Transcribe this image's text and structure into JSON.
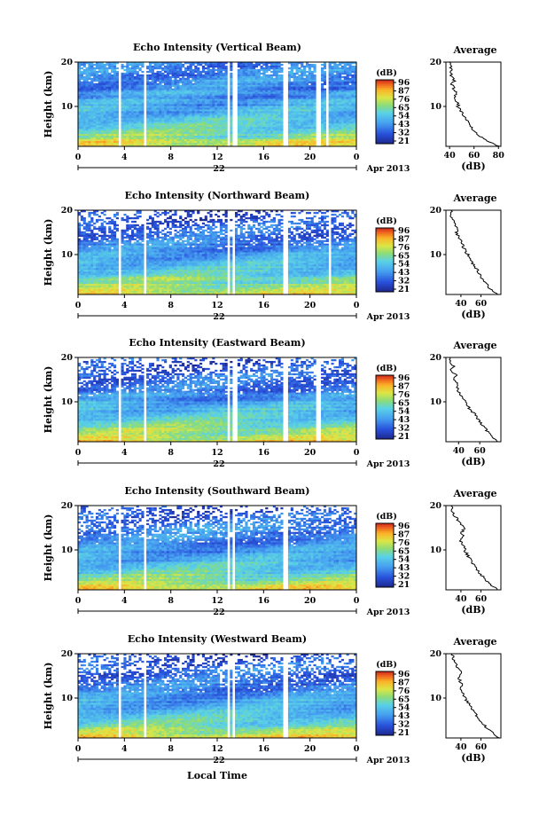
{
  "figure": {
    "date_label": "Apr 2013",
    "xlabel": "Local Time",
    "day_label": "22",
    "colorbar_unit": "(dB)",
    "colorbar_ticks": [
      "96",
      "87",
      "76",
      "65",
      "54",
      "43",
      "32",
      "21"
    ],
    "ylabel": "Height (km)",
    "average_title": "Average",
    "average_xlabel": "(dB)"
  },
  "chart_data": [
    {
      "type": "heatmap",
      "title": "Echo Intensity (Vertical Beam)",
      "ylabel": "Height (km)",
      "x_ticks": [
        "0",
        "4",
        "8",
        "12",
        "16",
        "20",
        "0"
      ],
      "xlim": [
        0,
        24
      ],
      "y_ticks": [
        "20",
        "10"
      ],
      "ylim": [
        1,
        20
      ],
      "colorbar": {
        "unit": "(dB)",
        "range": [
          21,
          96
        ],
        "ticks": [
          "96",
          "87",
          "76",
          "65",
          "54",
          "43",
          "32",
          "21"
        ]
      },
      "gap_hours": [
        [
          3.5,
          3.8
        ],
        [
          5.6,
          5.9
        ],
        [
          12.9,
          13.1
        ],
        [
          13.4,
          13.7
        ],
        [
          17.7,
          18.0
        ],
        [
          20.6,
          20.9
        ],
        [
          21.4,
          21.6
        ]
      ],
      "profile": {
        "title": "Average",
        "xlabel": "(dB)",
        "x_ticks": [
          "40",
          "60",
          "80"
        ],
        "xlim": [
          37,
          82
        ],
        "heights": [
          1,
          2,
          3,
          4,
          5,
          6,
          7,
          8,
          9,
          10,
          11,
          12,
          13,
          14,
          15,
          16,
          17,
          18,
          19,
          20
        ],
        "values": [
          80,
          72,
          66,
          62,
          58,
          55,
          54,
          52,
          49,
          47,
          46,
          44,
          45,
          43,
          42,
          44,
          41,
          42,
          41,
          40
        ]
      }
    },
    {
      "type": "heatmap",
      "title": "Echo Intensity (Northward Beam)",
      "ylabel": "Height (km)",
      "x_ticks": [
        "0",
        "4",
        "8",
        "12",
        "16",
        "20",
        "0"
      ],
      "xlim": [
        0,
        24
      ],
      "y_ticks": [
        "20",
        "10"
      ],
      "ylim": [
        1,
        20
      ],
      "colorbar": {
        "unit": "(dB)",
        "range": [
          21,
          96
        ],
        "ticks": [
          "96",
          "87",
          "76",
          "65",
          "54",
          "43",
          "32",
          "21"
        ]
      },
      "gap_hours": [
        [
          3.5,
          3.8
        ],
        [
          5.6,
          5.9
        ],
        [
          12.9,
          13.1
        ],
        [
          13.4,
          13.6
        ],
        [
          17.7,
          18.0
        ],
        [
          21.5,
          21.8
        ]
      ],
      "profile": {
        "title": "Average",
        "xlabel": "(dB)",
        "x_ticks": [
          "40",
          "60"
        ],
        "xlim": [
          25,
          80
        ],
        "heights": [
          1,
          2,
          3,
          4,
          5,
          6,
          7,
          8,
          9,
          10,
          11,
          12,
          13,
          14,
          15,
          16,
          17,
          18,
          19,
          20
        ],
        "values": [
          78,
          70,
          67,
          63,
          60,
          58,
          55,
          52,
          49,
          47,
          44,
          42,
          40,
          38,
          35,
          37,
          33,
          31,
          30,
          30
        ]
      }
    },
    {
      "type": "heatmap",
      "title": "Echo Intensity (Eastward Beam)",
      "ylabel": "Height (km)",
      "x_ticks": [
        "0",
        "4",
        "8",
        "12",
        "16",
        "20",
        "0"
      ],
      "xlim": [
        0,
        24
      ],
      "y_ticks": [
        "20",
        "10"
      ],
      "ylim": [
        1,
        20
      ],
      "colorbar": {
        "unit": "(dB)",
        "range": [
          21,
          96
        ],
        "ticks": [
          "96",
          "87",
          "76",
          "65",
          "54",
          "43",
          "32",
          "21"
        ]
      },
      "gap_hours": [
        [
          3.5,
          3.8
        ],
        [
          5.6,
          5.9
        ],
        [
          12.9,
          13.1
        ],
        [
          13.4,
          13.7
        ],
        [
          17.7,
          18.0
        ],
        [
          20.6,
          20.9
        ],
        [
          21.5,
          21.7
        ]
      ],
      "profile": {
        "title": "Average",
        "xlabel": "(dB)",
        "x_ticks": [
          "40",
          "60"
        ],
        "xlim": [
          28,
          80
        ],
        "heights": [
          1,
          2,
          3,
          4,
          5,
          6,
          7,
          8,
          9,
          10,
          11,
          12,
          13,
          14,
          15,
          16,
          17,
          18,
          19,
          20
        ],
        "values": [
          78,
          72,
          68,
          65,
          62,
          59,
          56,
          52,
          49,
          46,
          43,
          41,
          39,
          40,
          36,
          38,
          33,
          35,
          31,
          32
        ]
      }
    },
    {
      "type": "heatmap",
      "title": "Echo Intensity (Southward Beam)",
      "ylabel": "Height (km)",
      "x_ticks": [
        "0",
        "4",
        "8",
        "12",
        "16",
        "20",
        "0"
      ],
      "xlim": [
        0,
        24
      ],
      "y_ticks": [
        "20",
        "10"
      ],
      "ylim": [
        1,
        20
      ],
      "colorbar": {
        "unit": "(dB)",
        "range": [
          21,
          96
        ],
        "ticks": [
          "96",
          "87",
          "76",
          "65",
          "54",
          "43",
          "32",
          "21"
        ]
      },
      "gap_hours": [
        [
          3.5,
          3.8
        ],
        [
          5.6,
          5.9
        ],
        [
          12.9,
          13.1
        ],
        [
          13.4,
          13.6
        ],
        [
          17.7,
          18.0
        ],
        [
          21.5,
          21.7
        ]
      ],
      "profile": {
        "title": "Average",
        "xlabel": "(dB)",
        "x_ticks": [
          "40",
          "60"
        ],
        "xlim": [
          25,
          80
        ],
        "heights": [
          1,
          2,
          3,
          4,
          5,
          6,
          7,
          8,
          9,
          10,
          11,
          12,
          13,
          14,
          15,
          16,
          17,
          18,
          19,
          20
        ],
        "values": [
          78,
          71,
          66,
          62,
          58,
          55,
          52,
          49,
          46,
          44,
          42,
          40,
          42,
          41,
          43,
          40,
          36,
          33,
          31,
          30
        ]
      }
    },
    {
      "type": "heatmap",
      "title": "Echo Intensity (Westward Beam)",
      "ylabel": "Height (km)",
      "x_ticks": [
        "0",
        "4",
        "8",
        "12",
        "16",
        "20",
        "0"
      ],
      "xlim": [
        0,
        24
      ],
      "y_ticks": [
        "20",
        "10"
      ],
      "ylim": [
        1,
        20
      ],
      "colorbar": {
        "unit": "(dB)",
        "range": [
          21,
          96
        ],
        "ticks": [
          "96",
          "87",
          "76",
          "65",
          "54",
          "43",
          "32",
          "21"
        ]
      },
      "gap_hours": [
        [
          3.5,
          3.8
        ],
        [
          5.6,
          5.9
        ],
        [
          12.9,
          13.1
        ],
        [
          13.4,
          13.6
        ],
        [
          17.7,
          18.0
        ],
        [
          21.5,
          21.7
        ]
      ],
      "profile": {
        "title": "Average",
        "xlabel": "(dB)",
        "x_ticks": [
          "40",
          "60"
        ],
        "xlim": [
          25,
          80
        ],
        "heights": [
          1,
          2,
          3,
          4,
          5,
          6,
          7,
          8,
          9,
          10,
          11,
          12,
          13,
          14,
          15,
          16,
          17,
          18,
          19,
          20
        ],
        "values": [
          78,
          72,
          67,
          63,
          59,
          56,
          53,
          50,
          47,
          44,
          42,
          40,
          41,
          39,
          38,
          40,
          36,
          34,
          32,
          31
        ]
      }
    }
  ]
}
